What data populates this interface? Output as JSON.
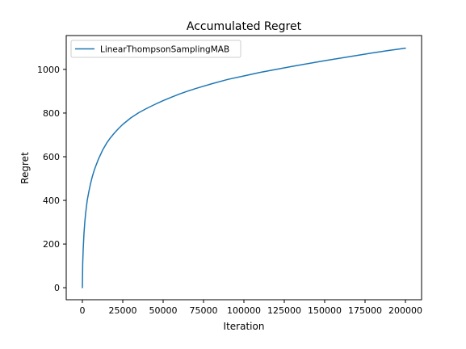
{
  "chart_data": {
    "type": "line",
    "title": "Accumulated Regret",
    "xlabel": "Iteration",
    "ylabel": "Regret",
    "xlim": [
      -10000,
      210000
    ],
    "ylim": [
      -55,
      1155
    ],
    "xticks": [
      0,
      25000,
      50000,
      75000,
      100000,
      125000,
      150000,
      175000,
      200000
    ],
    "yticks": [
      0,
      200,
      400,
      600,
      800,
      1000
    ],
    "xtick_labels": [
      "0",
      "25000",
      "50000",
      "75000",
      "100000",
      "125000",
      "150000",
      "175000",
      "200000"
    ],
    "ytick_labels": [
      "0",
      "200",
      "400",
      "600",
      "800",
      "1000"
    ],
    "grid": false,
    "legend_position": "top-left",
    "colors": {
      "series": "#1f77b4",
      "axes": "#000000",
      "legend_border": "#cccccc"
    },
    "series": [
      {
        "name": "LinearThompsonSamplingMAB",
        "x": [
          0,
          200,
          500,
          1000,
          1500,
          2000,
          3000,
          4000,
          5000,
          6000,
          7000,
          8000,
          10000,
          12500,
          15000,
          17500,
          20000,
          22500,
          25000,
          30000,
          35000,
          40000,
          45000,
          50000,
          55000,
          60000,
          65000,
          70000,
          75000,
          80000,
          90000,
          100000,
          110000,
          120000,
          130000,
          140000,
          150000,
          160000,
          170000,
          180000,
          190000,
          200000
        ],
        "y": [
          0,
          110,
          175,
          250,
          300,
          340,
          400,
          440,
          475,
          505,
          530,
          552,
          590,
          630,
          662,
          688,
          710,
          730,
          748,
          778,
          802,
          822,
          840,
          857,
          872,
          887,
          900,
          912,
          923,
          934,
          954,
          970,
          986,
          1000,
          1014,
          1027,
          1040,
          1052,
          1064,
          1076,
          1087,
          1097
        ]
      }
    ]
  }
}
